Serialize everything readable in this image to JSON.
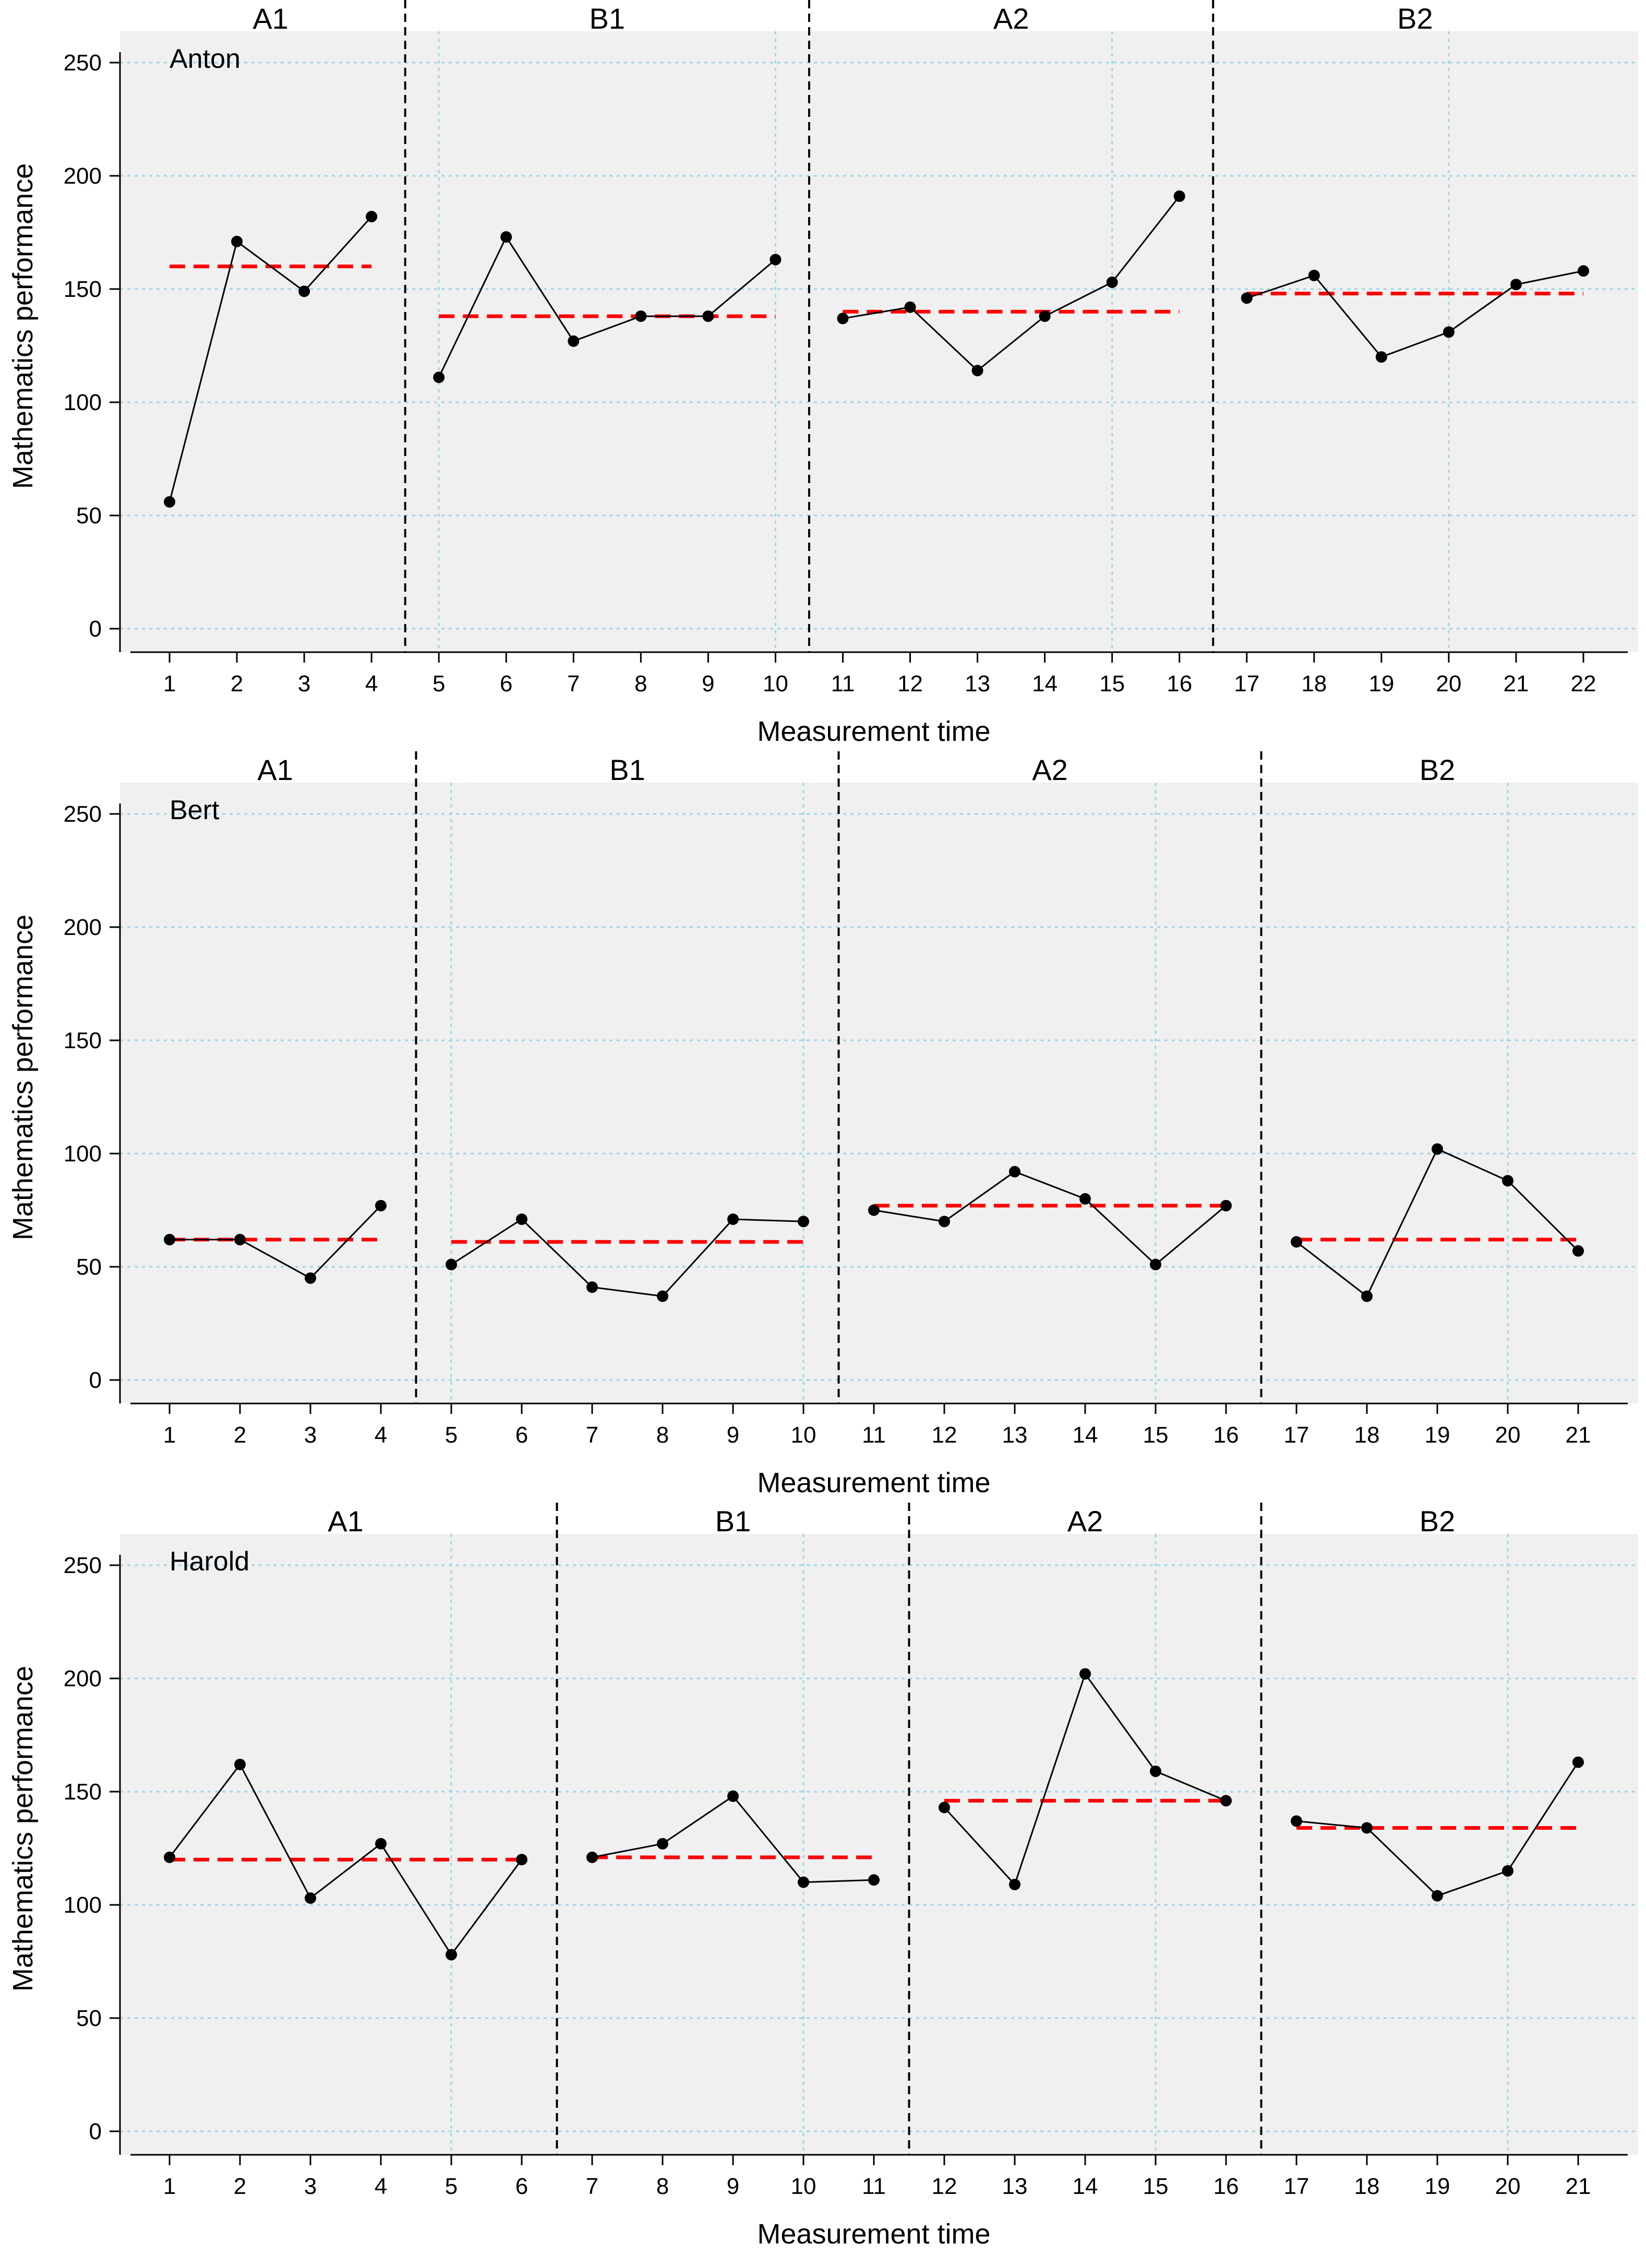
{
  "chart_data": [
    {
      "type": "line",
      "participant": "Anton",
      "xlabel": "Measurement time",
      "ylabel": "Mathematics performance",
      "ylim": [
        0,
        250
      ],
      "yticks": [
        0,
        50,
        100,
        150,
        200,
        250
      ],
      "xlim": [
        1,
        22
      ],
      "grid": true,
      "phases": [
        {
          "label": "A1",
          "start": 1,
          "end": 4,
          "mean": 160
        },
        {
          "label": "B1",
          "start": 5,
          "end": 10,
          "mean": 138
        },
        {
          "label": "A2",
          "start": 11,
          "end": 16,
          "mean": 140
        },
        {
          "label": "B2",
          "start": 17,
          "end": 22,
          "mean": 148
        }
      ],
      "x": [
        1,
        2,
        3,
        4,
        5,
        6,
        7,
        8,
        9,
        10,
        11,
        12,
        13,
        14,
        15,
        16,
        17,
        18,
        19,
        20,
        21,
        22
      ],
      "values": [
        56,
        171,
        149,
        182,
        111,
        173,
        127,
        138,
        138,
        163,
        137,
        142,
        114,
        138,
        153,
        191,
        146,
        156,
        120,
        131,
        152,
        158
      ]
    },
    {
      "type": "line",
      "participant": "Bert",
      "xlabel": "Measurement time",
      "ylabel": "Mathematics performance",
      "ylim": [
        0,
        250
      ],
      "yticks": [
        0,
        50,
        100,
        150,
        200,
        250
      ],
      "xlim": [
        1,
        21
      ],
      "grid": true,
      "phases": [
        {
          "label": "A1",
          "start": 1,
          "end": 4,
          "mean": 62
        },
        {
          "label": "B1",
          "start": 5,
          "end": 10,
          "mean": 61
        },
        {
          "label": "A2",
          "start": 11,
          "end": 16,
          "mean": 77
        },
        {
          "label": "B2",
          "start": 17,
          "end": 21,
          "mean": 62
        }
      ],
      "x": [
        1,
        2,
        3,
        4,
        5,
        6,
        7,
        8,
        9,
        10,
        11,
        12,
        13,
        14,
        15,
        16,
        17,
        18,
        19,
        20,
        21
      ],
      "values": [
        62,
        62,
        45,
        77,
        51,
        71,
        41,
        37,
        71,
        70,
        75,
        70,
        92,
        80,
        51,
        77,
        61,
        37,
        102,
        88,
        57
      ]
    },
    {
      "type": "line",
      "participant": "Harold",
      "xlabel": "Measurement time",
      "ylabel": "Mathematics performance",
      "ylim": [
        0,
        250
      ],
      "yticks": [
        0,
        50,
        100,
        150,
        200,
        250
      ],
      "xlim": [
        1,
        21
      ],
      "grid": true,
      "phases": [
        {
          "label": "A1",
          "start": 1,
          "end": 6,
          "mean": 120
        },
        {
          "label": "B1",
          "start": 7,
          "end": 11,
          "mean": 121
        },
        {
          "label": "A2",
          "start": 12,
          "end": 16,
          "mean": 146
        },
        {
          "label": "B2",
          "start": 17,
          "end": 21,
          "mean": 134
        }
      ],
      "x": [
        1,
        2,
        3,
        4,
        5,
        6,
        7,
        8,
        9,
        10,
        11,
        12,
        13,
        14,
        15,
        16,
        17,
        18,
        19,
        20,
        21
      ],
      "values": [
        121,
        162,
        103,
        127,
        78,
        120,
        121,
        127,
        148,
        110,
        111,
        143,
        109,
        202,
        159,
        146,
        137,
        134,
        104,
        115,
        163
      ]
    }
  ],
  "colors": {
    "panel_background": "#f0f0f0",
    "data_line": "#000000",
    "mean_line": "#ff0000",
    "grid": "#9dd4e8",
    "phase_divider": "#000000"
  }
}
